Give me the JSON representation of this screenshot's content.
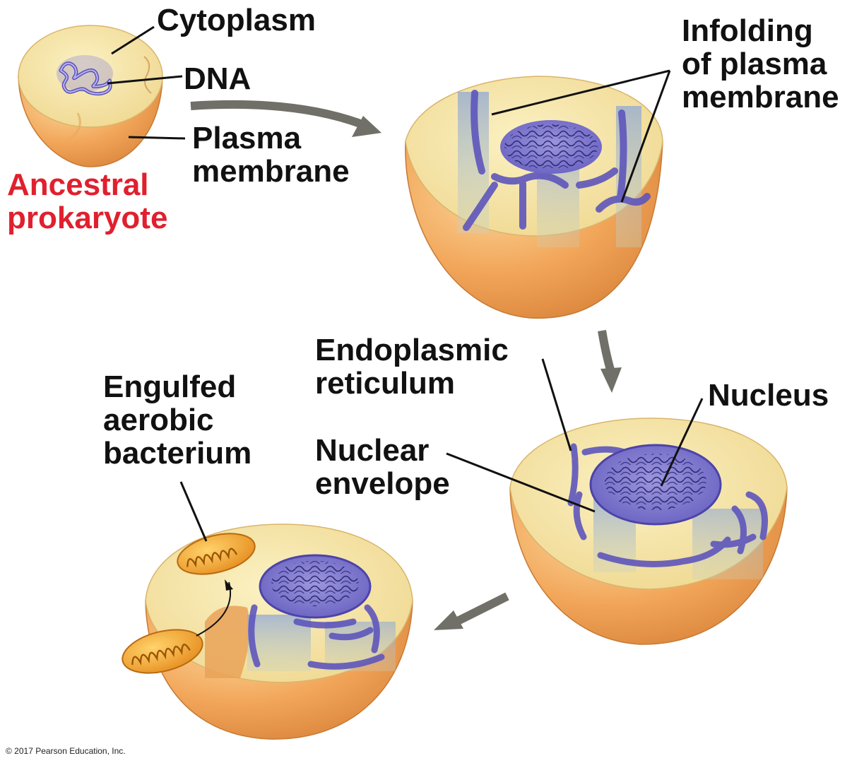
{
  "labels": {
    "cytoplasm": "Cytoplasm",
    "dna": "DNA",
    "plasma_membrane": [
      "Plasma",
      "membrane"
    ],
    "ancestral_prokaryote": [
      "Ancestral",
      "prokaryote"
    ],
    "infolding": [
      "Infolding",
      "of plasma",
      "membrane"
    ],
    "endoplasmic_reticulum": [
      "Endoplasmic",
      "reticulum"
    ],
    "nucleus": "Nucleus",
    "nuclear_envelope": [
      "Nuclear",
      "envelope"
    ],
    "engulfed_bacterium": [
      "Engulfed",
      "aerobic",
      "bacterium"
    ]
  },
  "copyright": "© 2017 Pearson Education, Inc.",
  "colors": {
    "label_text": "#111111",
    "highlight_label": "#e0202e",
    "cell_outer": "#f2a65a",
    "cytoplasm": "#f6e6a0",
    "membrane": "#6a62c2",
    "mitochondrion": "#f0a234",
    "arrow": "#707068"
  }
}
